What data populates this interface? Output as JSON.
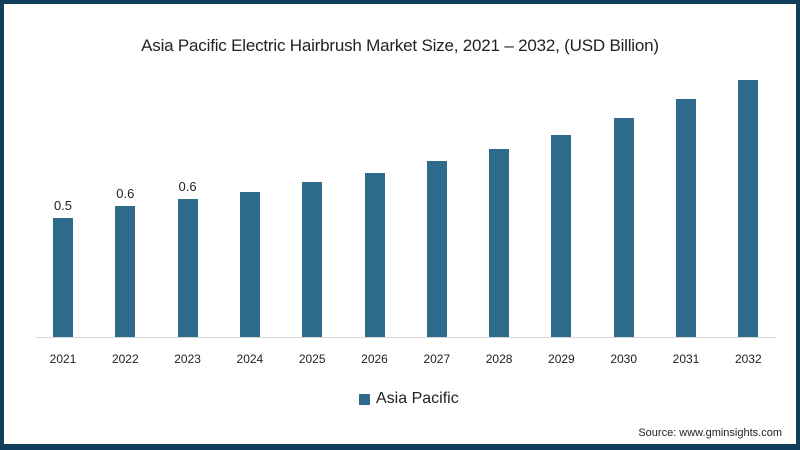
{
  "chart_data": {
    "type": "bar",
    "title": "Asia Pacific Electric Hairbrush Market Size, 2021 – 2032, (USD Billion)",
    "xlabel": "",
    "ylabel": "",
    "categories": [
      "2021",
      "2022",
      "2023",
      "2024",
      "2025",
      "2026",
      "2027",
      "2028",
      "2029",
      "2030",
      "2031",
      "2032"
    ],
    "series": [
      {
        "name": "Asia Pacific",
        "color": "#2e6a8c",
        "values": [
          0.5,
          0.55,
          0.58,
          0.61,
          0.65,
          0.69,
          0.74,
          0.79,
          0.85,
          0.92,
          1.0,
          1.08
        ]
      }
    ],
    "data_labels": {
      "2021": "0.5",
      "2022": "0.6",
      "2023": "0.6"
    },
    "ylim": [
      0,
      1.15
    ],
    "grid": false,
    "legend_position": "bottom"
  },
  "legend": {
    "label": "Asia Pacific"
  },
  "source": "Source: www.gminsights.com",
  "colors": {
    "frame": "#0f3d5c",
    "bar": "#2e6a8c"
  }
}
